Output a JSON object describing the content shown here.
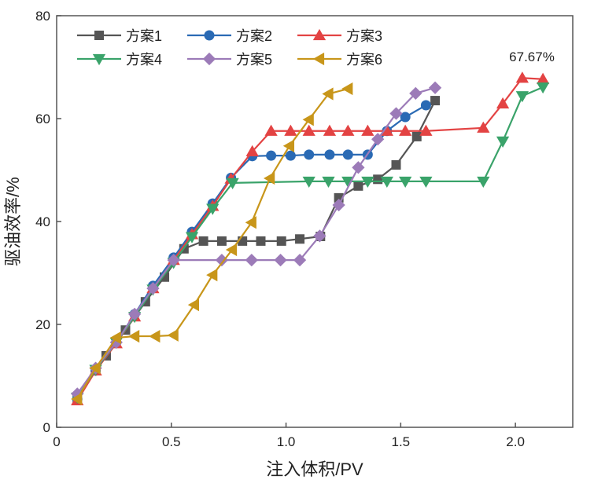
{
  "chart_data": {
    "type": "line",
    "title": "",
    "xlabel": "注入体积/PV",
    "ylabel": "驱油效率/%",
    "xlim": [
      0,
      2.25
    ],
    "ylim": [
      0,
      80
    ],
    "xticks": [
      "0",
      "0.5",
      "1.0",
      "1.5",
      "2.0"
    ],
    "xtick_values": [
      0,
      0.5,
      1.0,
      1.5,
      2.0
    ],
    "yticks": [
      "0",
      "20",
      "40",
      "60",
      "80"
    ],
    "ytick_values": [
      0,
      20,
      40,
      60,
      80
    ],
    "grid": false,
    "legend_placement": "top-left",
    "annotation": {
      "text": "67.67%",
      "x": 2.12,
      "y": 67.67
    },
    "series": [
      {
        "name": "方案1",
        "marker": "square",
        "color": "#555555",
        "x": [
          0.09,
          0.17,
          0.216,
          0.3,
          0.387,
          0.47,
          0.555,
          0.64,
          0.72,
          0.81,
          0.89,
          0.98,
          1.06,
          1.15,
          1.23,
          1.315,
          1.4,
          1.48,
          1.57,
          1.65
        ],
        "y": [
          5.6,
          11,
          13.9,
          18.9,
          24.4,
          29.2,
          34.7,
          36.2,
          36.2,
          36.2,
          36.2,
          36.2,
          36.6,
          37.1,
          44.6,
          46.9,
          48.2,
          51.0,
          56.5,
          63.5
        ]
      },
      {
        "name": "方案2",
        "marker": "circle",
        "color": "#2a6ab4",
        "x": [
          0.09,
          0.17,
          0.26,
          0.34,
          0.42,
          0.51,
          0.59,
          0.68,
          0.76,
          0.853,
          0.935,
          1.02,
          1.1,
          1.19,
          1.27,
          1.356,
          1.44,
          1.52,
          1.61
        ],
        "y": [
          5.5,
          11,
          16.5,
          22,
          27.5,
          33,
          38,
          43.5,
          48.5,
          52.7,
          52.8,
          52.8,
          53,
          53,
          53,
          53,
          57.6,
          60.3,
          62.6
        ]
      },
      {
        "name": "方案3",
        "marker": "triangle-up",
        "color": "#e34343",
        "x": [
          0.09,
          0.17,
          0.26,
          0.34,
          0.42,
          0.51,
          0.59,
          0.68,
          0.76,
          0.853,
          0.935,
          1.02,
          1.1,
          1.19,
          1.27,
          1.356,
          1.44,
          1.52,
          1.61,
          1.86,
          1.945,
          2.03,
          2.12
        ],
        "y": [
          5.2,
          11,
          16.3,
          21.5,
          27,
          32.5,
          37.5,
          43,
          48.3,
          53.6,
          57.6,
          57.6,
          57.6,
          57.6,
          57.6,
          57.6,
          57.6,
          57.6,
          57.6,
          58.2,
          62.9,
          67.9,
          67.67
        ]
      },
      {
        "name": "方案4",
        "marker": "triangle-down",
        "color": "#3aa36a",
        "x": [
          0.09,
          0.17,
          0.26,
          0.34,
          0.42,
          0.51,
          0.59,
          0.68,
          0.767,
          1.1,
          1.185,
          1.27,
          1.356,
          1.44,
          1.52,
          1.61,
          1.86,
          1.945,
          2.03,
          2.12
        ],
        "y": [
          5.8,
          11.2,
          16.5,
          21.5,
          26.8,
          32,
          37,
          42.5,
          47.5,
          47.8,
          47.8,
          47.8,
          47.8,
          47.8,
          47.8,
          47.8,
          47.8,
          55.6,
          64.4,
          66.1
        ]
      },
      {
        "name": "方案5",
        "marker": "diamond",
        "color": "#9c7bb8",
        "x": [
          0.09,
          0.17,
          0.26,
          0.34,
          0.42,
          0.51,
          0.72,
          0.85,
          0.976,
          1.06,
          1.147,
          1.23,
          1.315,
          1.4,
          1.48,
          1.565,
          1.65
        ],
        "y": [
          6.5,
          11.5,
          16.5,
          22,
          27,
          32.5,
          32.5,
          32.5,
          32.5,
          32.5,
          37.2,
          43.2,
          50.5,
          56,
          61,
          64.9,
          66
        ]
      },
      {
        "name": "方案6",
        "marker": "triangle-left",
        "color": "#c8961a",
        "x": [
          0.09,
          0.17,
          0.26,
          0.34,
          0.43,
          0.51,
          0.6,
          0.68,
          0.765,
          0.85,
          0.93,
          1.015,
          1.1,
          1.185,
          1.27
        ],
        "y": [
          5.5,
          11.5,
          17.4,
          17.7,
          17.7,
          17.9,
          23.8,
          29.6,
          34.5,
          39.8,
          48.4,
          54.7,
          59.8,
          64.8,
          65.8
        ]
      }
    ]
  }
}
